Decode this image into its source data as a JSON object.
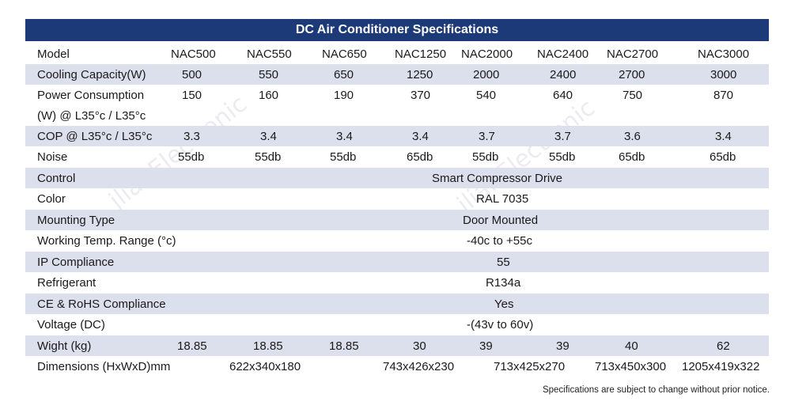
{
  "title": "DC Air Conditioner Specifications",
  "footnote": "Specifications are subject to change without prior notice.",
  "watermark": "jlianElectronic",
  "models": [
    "NAC500",
    "NAC550",
    "NAC650",
    "NAC1250",
    "NAC2000",
    "NAC2400",
    "NAC2700",
    "NAC3000"
  ],
  "rows": {
    "model_label": "Model",
    "cooling": {
      "label": "Cooling Capacity(W)",
      "values": [
        "500",
        "550",
        "650",
        "1250",
        "2000",
        "2400",
        "2700",
        "3000"
      ]
    },
    "power": {
      "label1": "Power Consumption",
      "label2": "(W) @ L35°c / L35°c",
      "values": [
        "150",
        "160",
        "190",
        "370",
        "540",
        "640",
        "750",
        "870"
      ]
    },
    "cop": {
      "label": "COP @ L35°c / L35°c",
      "values": [
        "3.3",
        "3.4",
        "3.4",
        "3.4",
        "3.7",
        "3.7",
        "3.6",
        "3.4"
      ]
    },
    "noise": {
      "label": "Noise",
      "values": [
        "55db",
        "55db",
        "55db",
        "65db",
        "55db",
        "55db",
        "65db",
        "65db"
      ]
    },
    "control": {
      "label": "Control",
      "value": "Smart Compressor Drive"
    },
    "color": {
      "label": "Color",
      "value": "RAL 7035"
    },
    "mounting": {
      "label": "Mounting Type",
      "value": "Door Mounted"
    },
    "temp": {
      "label": "Working Temp. Range (°c)",
      "value": "-40c to +55c"
    },
    "ip": {
      "label": "IP Compliance",
      "value": "55"
    },
    "refrigerant": {
      "label": "Refrigerant",
      "value": "R134a"
    },
    "ce": {
      "label": "CE & RoHS Compliance",
      "value": "Yes"
    },
    "voltage": {
      "label": "Voltage (DC)",
      "value": "-(43v to 60v)"
    },
    "weight": {
      "label": "Wight (kg)",
      "values": [
        "18.85",
        "18.85",
        "18.85",
        "30",
        "39",
        "39",
        "40",
        "62"
      ]
    },
    "dimensions": {
      "label": "Dimensions (HxWxD)mm",
      "values": [
        "622x340x180",
        "743x426x230",
        "713x425x270",
        "713x450x300",
        "1205x419x322"
      ]
    }
  }
}
